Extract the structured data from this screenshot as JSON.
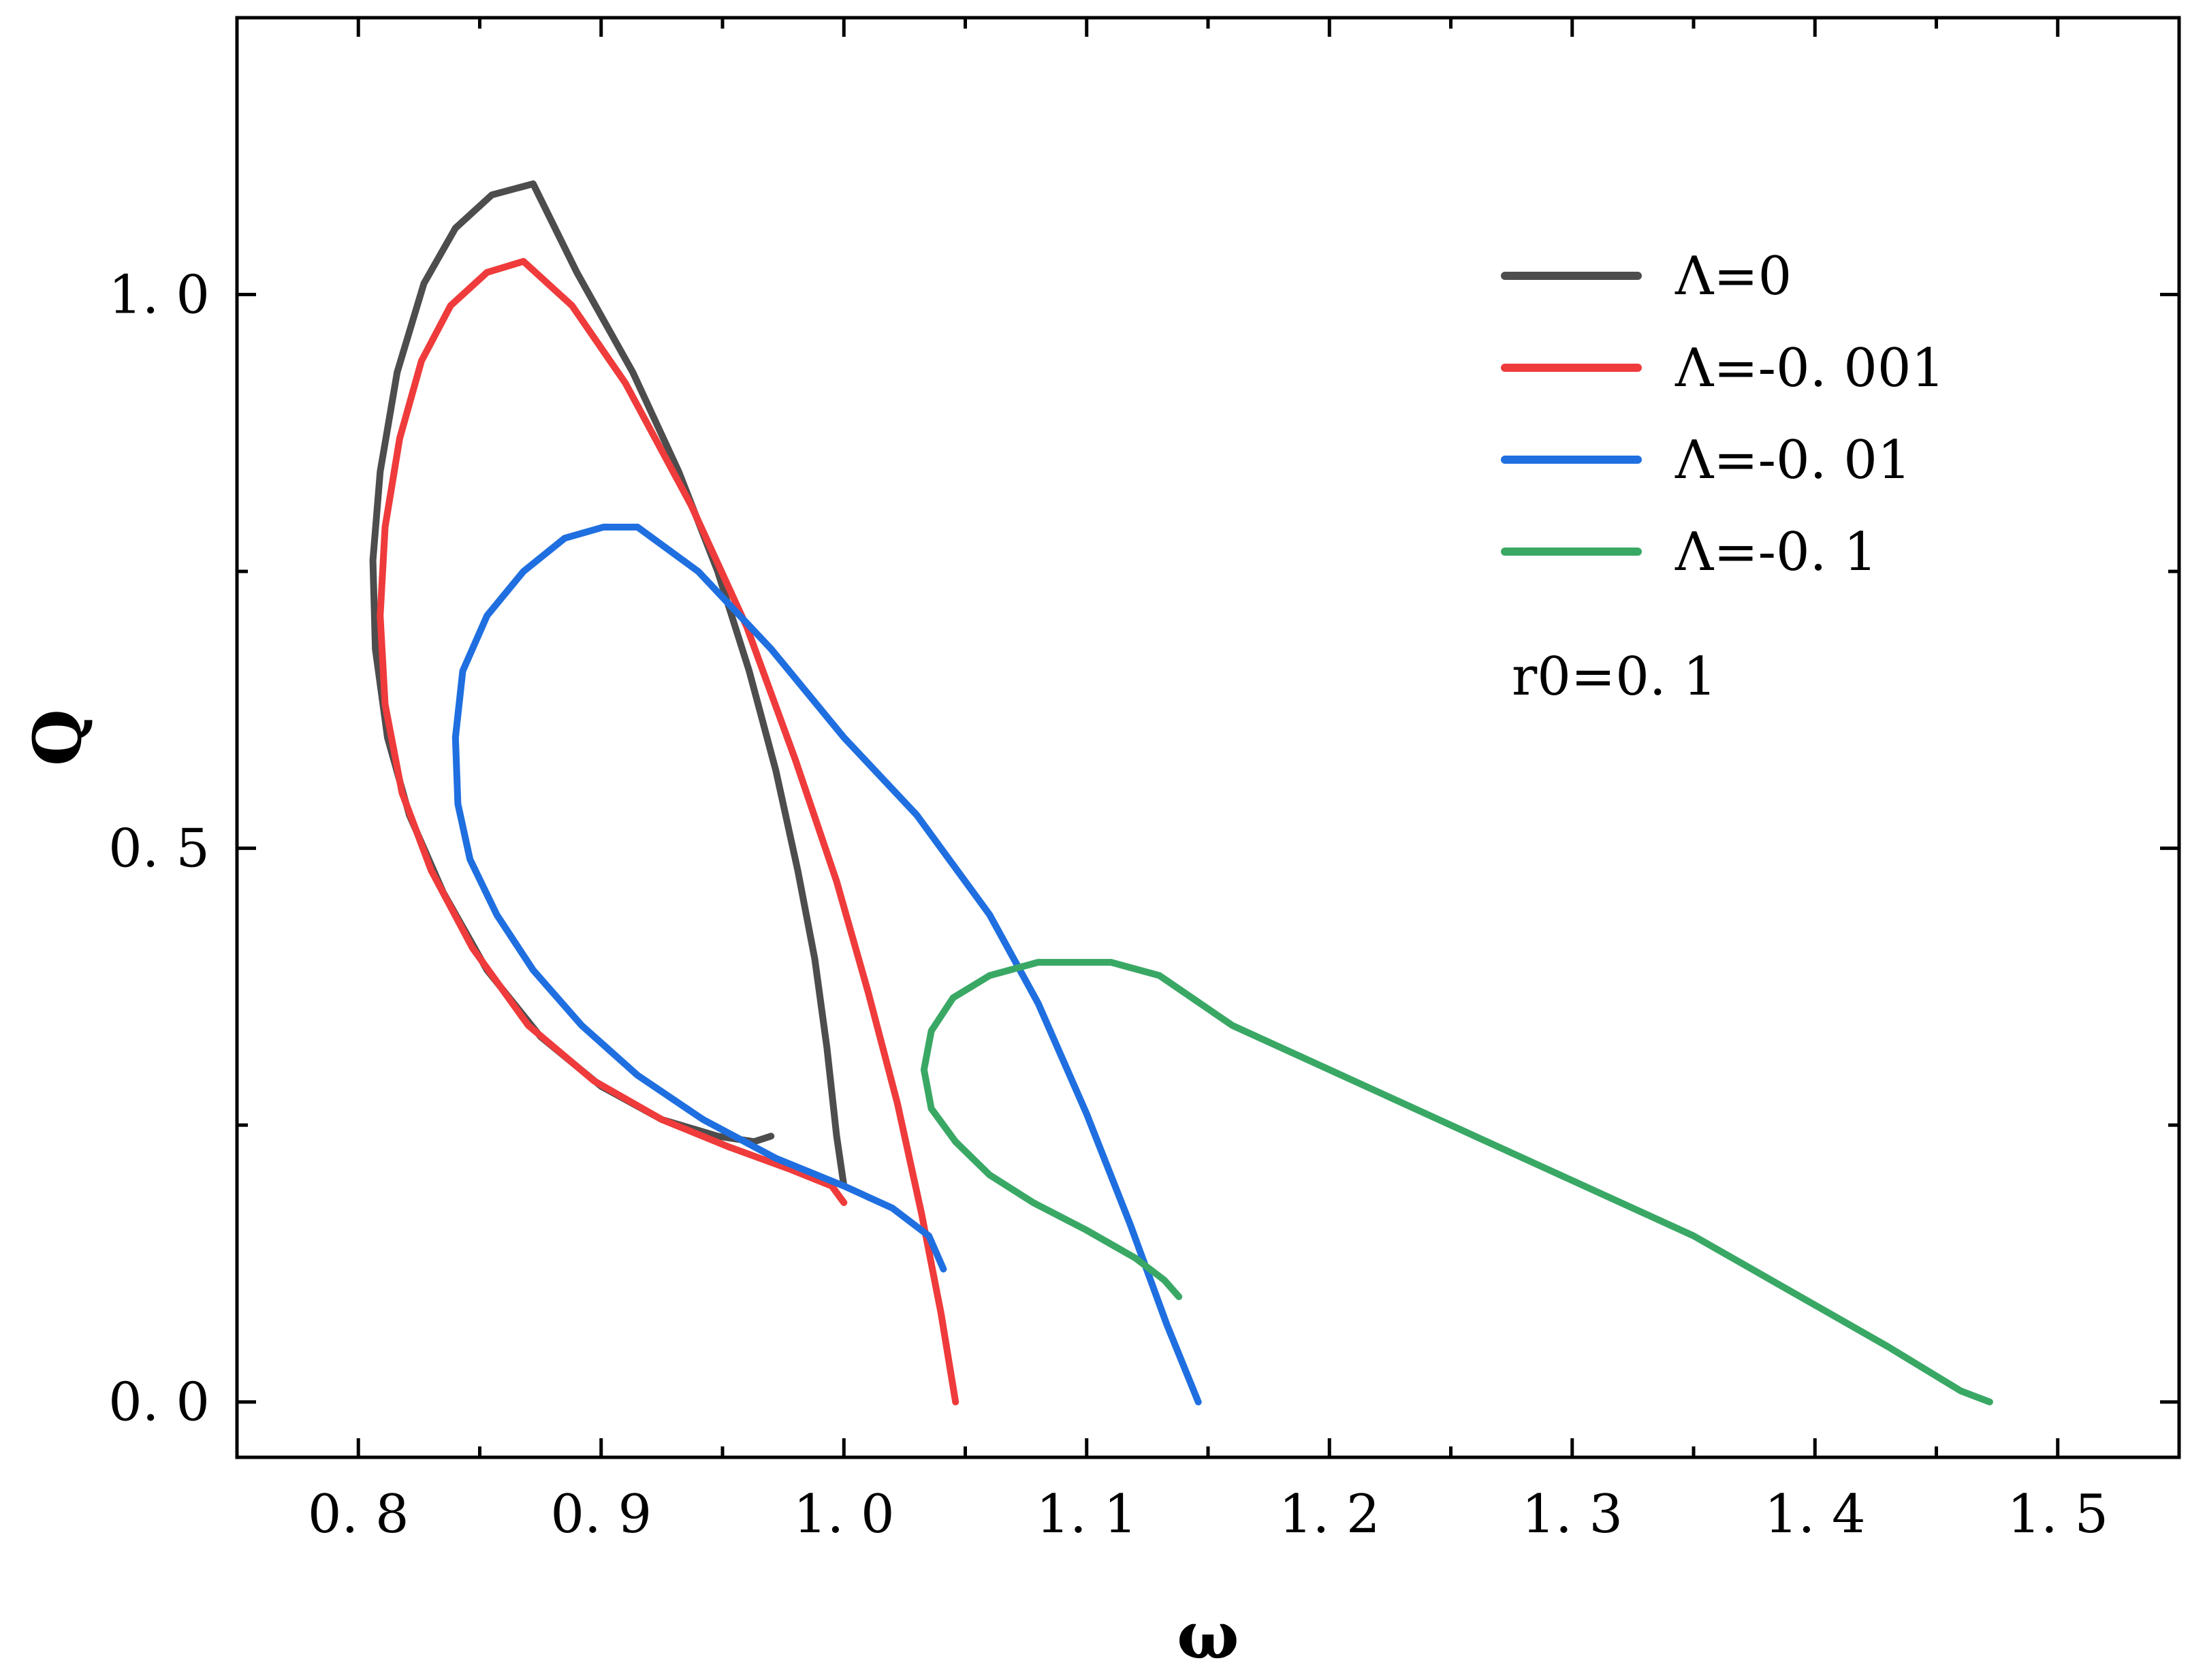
{
  "chart_data": {
    "type": "line",
    "xlabel": "ω",
    "ylabel": "Q",
    "xlim": [
      0.75,
      1.55
    ],
    "ylim": [
      -0.05,
      1.25
    ],
    "x_major_ticks": [
      0.8,
      0.9,
      1.0,
      1.1,
      1.2,
      1.3,
      1.4,
      1.5
    ],
    "x_tick_labels": [
      "0. 8",
      "0. 9",
      "1. 0",
      "1. 1",
      "1. 2",
      "1. 3",
      "1. 4",
      "1. 5"
    ],
    "x_minor_ticks": [
      0.85,
      0.95,
      1.05,
      1.15,
      1.25,
      1.35,
      1.45
    ],
    "y_major_ticks": [
      0.0,
      0.5,
      1.0
    ],
    "y_tick_labels": [
      "0. 0",
      "0. 5",
      "1. 0"
    ],
    "y_minor_ticks": [
      0.25,
      0.75
    ],
    "grid": false,
    "legend_position": "top-right",
    "annotation": "r0=0. 1",
    "series": [
      {
        "name": "Λ=0",
        "color": "#4d4d4d",
        "points": [
          [
            1.0,
            0.195
          ],
          [
            0.997,
            0.24
          ],
          [
            0.993,
            0.32
          ],
          [
            0.988,
            0.4
          ],
          [
            0.981,
            0.48
          ],
          [
            0.972,
            0.57
          ],
          [
            0.961,
            0.66
          ],
          [
            0.948,
            0.75
          ],
          [
            0.932,
            0.84
          ],
          [
            0.913,
            0.93
          ],
          [
            0.89,
            1.02
          ],
          [
            0.872,
            1.1
          ],
          [
            0.855,
            1.09
          ],
          [
            0.84,
            1.06
          ],
          [
            0.827,
            1.01
          ],
          [
            0.816,
            0.93
          ],
          [
            0.809,
            0.84
          ],
          [
            0.806,
            0.76
          ],
          [
            0.807,
            0.68
          ],
          [
            0.812,
            0.6
          ],
          [
            0.821,
            0.53
          ],
          [
            0.835,
            0.46
          ],
          [
            0.853,
            0.39
          ],
          [
            0.875,
            0.33
          ],
          [
            0.9,
            0.285
          ],
          [
            0.925,
            0.255
          ],
          [
            0.948,
            0.24
          ],
          [
            0.963,
            0.235
          ],
          [
            0.97,
            0.24
          ]
        ]
      },
      {
        "name": "Λ=-0. 001",
        "color": "#ef3b3b",
        "points": [
          [
            1.046,
            0.0
          ],
          [
            1.04,
            0.08
          ],
          [
            1.032,
            0.17
          ],
          [
            1.022,
            0.27
          ],
          [
            1.01,
            0.37
          ],
          [
            0.997,
            0.47
          ],
          [
            0.98,
            0.58
          ],
          [
            0.96,
            0.7
          ],
          [
            0.937,
            0.81
          ],
          [
            0.91,
            0.92
          ],
          [
            0.888,
            0.99
          ],
          [
            0.868,
            1.03
          ],
          [
            0.853,
            1.02
          ],
          [
            0.838,
            0.99
          ],
          [
            0.826,
            0.94
          ],
          [
            0.817,
            0.87
          ],
          [
            0.811,
            0.79
          ],
          [
            0.809,
            0.71
          ],
          [
            0.811,
            0.63
          ],
          [
            0.818,
            0.55
          ],
          [
            0.83,
            0.48
          ],
          [
            0.847,
            0.41
          ],
          [
            0.87,
            0.34
          ],
          [
            0.897,
            0.29
          ],
          [
            0.925,
            0.255
          ],
          [
            0.953,
            0.23
          ],
          [
            0.978,
            0.21
          ],
          [
            0.995,
            0.195
          ],
          [
            1.0,
            0.18
          ]
        ]
      },
      {
        "name": "Λ=-0. 01",
        "color": "#1f6fe0",
        "points": [
          [
            1.146,
            0.0
          ],
          [
            1.133,
            0.07
          ],
          [
            1.118,
            0.16
          ],
          [
            1.1,
            0.26
          ],
          [
            1.08,
            0.36
          ],
          [
            1.06,
            0.44
          ],
          [
            1.03,
            0.53
          ],
          [
            1.0,
            0.6
          ],
          [
            0.97,
            0.68
          ],
          [
            0.94,
            0.75
          ],
          [
            0.915,
            0.79
          ],
          [
            0.901,
            0.79
          ],
          [
            0.885,
            0.78
          ],
          [
            0.868,
            0.75
          ],
          [
            0.853,
            0.71
          ],
          [
            0.843,
            0.66
          ],
          [
            0.84,
            0.6
          ],
          [
            0.841,
            0.54
          ],
          [
            0.846,
            0.49
          ],
          [
            0.857,
            0.44
          ],
          [
            0.872,
            0.39
          ],
          [
            0.892,
            0.34
          ],
          [
            0.915,
            0.295
          ],
          [
            0.942,
            0.255
          ],
          [
            0.972,
            0.22
          ],
          [
            1.0,
            0.195
          ],
          [
            1.02,
            0.175
          ],
          [
            1.035,
            0.15
          ],
          [
            1.041,
            0.12
          ]
        ]
      },
      {
        "name": "Λ=-0. 1",
        "color": "#3aa865",
        "points": [
          [
            1.472,
            0.0
          ],
          [
            1.46,
            0.01
          ],
          [
            1.43,
            0.05
          ],
          [
            1.39,
            0.1
          ],
          [
            1.35,
            0.15
          ],
          [
            1.3,
            0.2
          ],
          [
            1.25,
            0.25
          ],
          [
            1.2,
            0.3
          ],
          [
            1.16,
            0.34
          ],
          [
            1.13,
            0.385
          ],
          [
            1.11,
            0.397
          ],
          [
            1.08,
            0.397
          ],
          [
            1.06,
            0.385
          ],
          [
            1.045,
            0.365
          ],
          [
            1.036,
            0.335
          ],
          [
            1.033,
            0.3
          ],
          [
            1.036,
            0.265
          ],
          [
            1.046,
            0.235
          ],
          [
            1.06,
            0.205
          ],
          [
            1.078,
            0.18
          ],
          [
            1.1,
            0.155
          ],
          [
            1.12,
            0.13
          ],
          [
            1.132,
            0.11
          ],
          [
            1.138,
            0.095
          ]
        ]
      }
    ]
  }
}
